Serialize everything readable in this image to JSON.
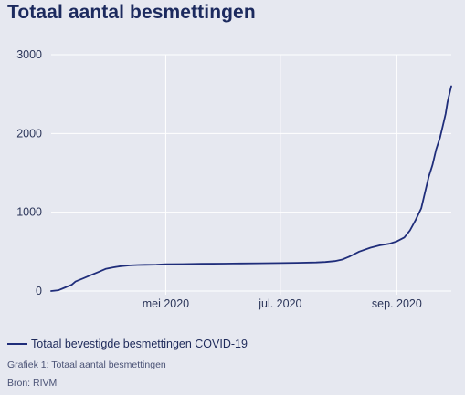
{
  "title": "Totaal aantal besmettingen",
  "legend_label": "Totaal bevestigde besmettingen COVID-19",
  "caption": "Grafiek 1: Totaal aantal besmettingen",
  "source": "Bron: RIVM",
  "colors": {
    "line": "#1f2d7a",
    "grid": "#ffffff",
    "background": "#e6e8f0"
  },
  "chart_data": {
    "type": "line",
    "grid": true,
    "legend_position": "bottom-left",
    "x_range": [
      "2020-03-01",
      "2020-09-30"
    ],
    "ylim": [
      0,
      3000
    ],
    "y_ticks": [
      0,
      1000,
      2000,
      3000
    ],
    "x_ticks": [
      {
        "date": "2020-05-01",
        "label": "mei 2020"
      },
      {
        "date": "2020-07-01",
        "label": "jul. 2020"
      },
      {
        "date": "2020-09-01",
        "label": "sep. 2020"
      }
    ],
    "series": [
      {
        "name": "Totaal bevestigde besmettingen COVID-19",
        "x": [
          "2020-03-01",
          "2020-03-05",
          "2020-03-08",
          "2020-03-12",
          "2020-03-14",
          "2020-03-18",
          "2020-03-22",
          "2020-03-26",
          "2020-03-30",
          "2020-04-03",
          "2020-04-07",
          "2020-04-12",
          "2020-04-16",
          "2020-04-20",
          "2020-04-26",
          "2020-05-01",
          "2020-05-10",
          "2020-05-20",
          "2020-06-01",
          "2020-06-10",
          "2020-06-20",
          "2020-07-01",
          "2020-07-10",
          "2020-07-20",
          "2020-07-25",
          "2020-07-30",
          "2020-08-03",
          "2020-08-07",
          "2020-08-12",
          "2020-08-18",
          "2020-08-23",
          "2020-08-28",
          "2020-09-01",
          "2020-09-05",
          "2020-09-08",
          "2020-09-11",
          "2020-09-14",
          "2020-09-16",
          "2020-09-18",
          "2020-09-20",
          "2020-09-22",
          "2020-09-24",
          "2020-09-26",
          "2020-09-27",
          "2020-09-28",
          "2020-09-29",
          "2020-09-30"
        ],
        "y": [
          0,
          10,
          40,
          80,
          120,
          160,
          200,
          240,
          280,
          300,
          315,
          325,
          330,
          332,
          335,
          340,
          342,
          345,
          348,
          350,
          352,
          355,
          358,
          362,
          368,
          380,
          400,
          440,
          500,
          550,
          580,
          600,
          630,
          680,
          770,
          900,
          1050,
          1250,
          1450,
          1600,
          1800,
          1950,
          2150,
          2250,
          2400,
          2500,
          2600
        ]
      }
    ]
  }
}
